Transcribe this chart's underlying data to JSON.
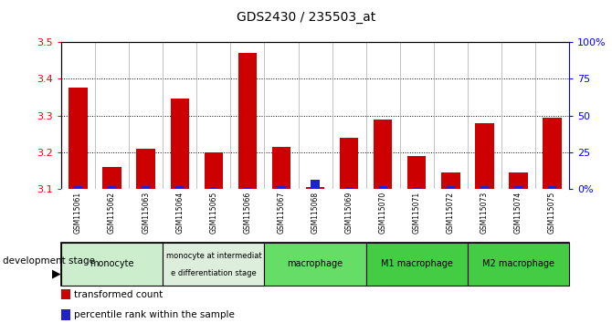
{
  "title": "GDS2430 / 235503_at",
  "samples": [
    "GSM115061",
    "GSM115062",
    "GSM115063",
    "GSM115064",
    "GSM115065",
    "GSM115066",
    "GSM115067",
    "GSM115068",
    "GSM115069",
    "GSM115070",
    "GSM115071",
    "GSM115072",
    "GSM115073",
    "GSM115074",
    "GSM115075"
  ],
  "red_values": [
    3.375,
    3.16,
    3.21,
    3.345,
    3.2,
    3.47,
    3.215,
    3.105,
    3.24,
    3.29,
    3.19,
    3.145,
    3.28,
    3.145,
    3.295
  ],
  "blue_pct": [
    2,
    2,
    2,
    2,
    1.5,
    1.5,
    2,
    6,
    1.5,
    2,
    1.5,
    2,
    2,
    2,
    2
  ],
  "ymin": 3.1,
  "ymax": 3.5,
  "yticks": [
    3.1,
    3.2,
    3.3,
    3.4,
    3.5
  ],
  "y2ticks_pct": [
    0,
    25,
    50,
    75,
    100
  ],
  "y2labels": [
    "0%",
    "25",
    "50",
    "75",
    "100%"
  ],
  "bar_color": "#cc0000",
  "blue_color": "#2222cc",
  "groups": [
    {
      "label": "monocyte",
      "start": 0,
      "end": 3,
      "color": "#cceecc",
      "text_lines": [
        "monocyte"
      ]
    },
    {
      "label": "monocyte at intermediate differentiation stage",
      "start": 3,
      "end": 6,
      "color": "#ddeedd",
      "text_lines": [
        "monocyte at intermediat",
        "e differentiation stage"
      ]
    },
    {
      "label": "macrophage",
      "start": 6,
      "end": 9,
      "color": "#66dd66",
      "text_lines": [
        "macrophage"
      ]
    },
    {
      "label": "M1 macrophage",
      "start": 9,
      "end": 12,
      "color": "#44cc44",
      "text_lines": [
        "M1 macrophage"
      ]
    },
    {
      "label": "M2 macrophage",
      "start": 12,
      "end": 15,
      "color": "#44cc44",
      "text_lines": [
        "M2 macrophage"
      ]
    }
  ],
  "legend_items": [
    {
      "color": "#cc0000",
      "label": "transformed count"
    },
    {
      "color": "#2222cc",
      "label": "percentile rank within the sample"
    }
  ],
  "fig_width": 6.7,
  "fig_height": 3.54,
  "dpi": 100
}
